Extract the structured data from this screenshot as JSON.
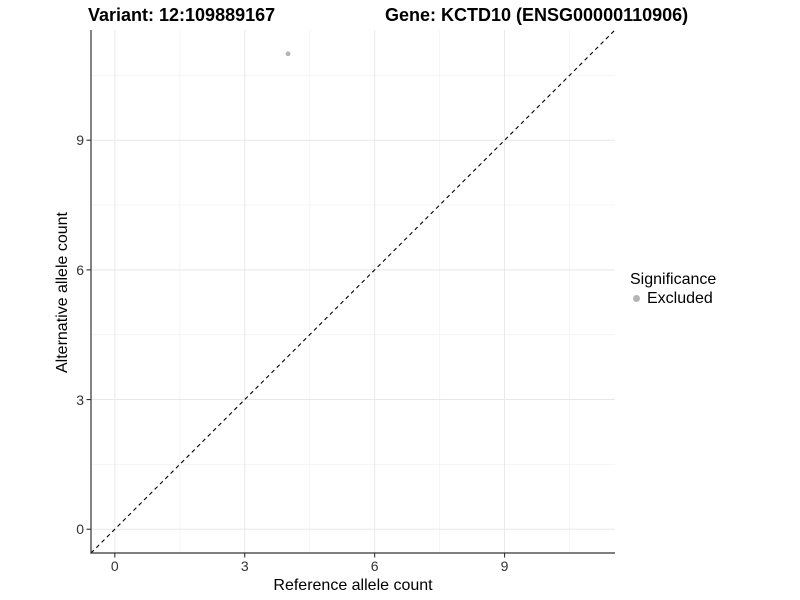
{
  "chart_data": {
    "type": "scatter",
    "title_left": "Variant: 12:109889167",
    "title_right": "Gene: KCTD10 (ENSG00000110906)",
    "xlabel": "Reference allele count",
    "ylabel": "Alternative allele count",
    "xlim": [
      -0.55,
      11.55
    ],
    "ylim": [
      -0.55,
      11.55
    ],
    "x_ticks": [
      0,
      3,
      6,
      9
    ],
    "y_ticks": [
      0,
      3,
      6,
      9
    ],
    "x_minor_ticks": [
      1.5,
      4.5,
      7.5,
      10.5
    ],
    "y_minor_ticks": [
      1.5,
      4.5,
      7.5,
      10.5
    ],
    "grid": true,
    "series": [
      {
        "name": "Excluded",
        "marker": "circle",
        "color": "#b5b5b5",
        "points": [
          {
            "x": 4,
            "y": 11
          }
        ]
      }
    ],
    "reference_line": {
      "type": "identity",
      "style": "dashed",
      "color": "#000000",
      "from": [
        -0.55,
        -0.55
      ],
      "to": [
        11.55,
        11.55
      ]
    },
    "legend": {
      "position": "right",
      "title": "Significance",
      "entries": [
        {
          "label": "Excluded",
          "marker": "circle",
          "color": "#b5b5b5"
        }
      ]
    },
    "colors": {
      "background": "#ffffff",
      "axis_line": "#333333",
      "tick_label": "#333333",
      "major_grid": "#e8e8e8",
      "minor_grid": "#f4f4f4",
      "point": "#b5b5b5"
    }
  }
}
